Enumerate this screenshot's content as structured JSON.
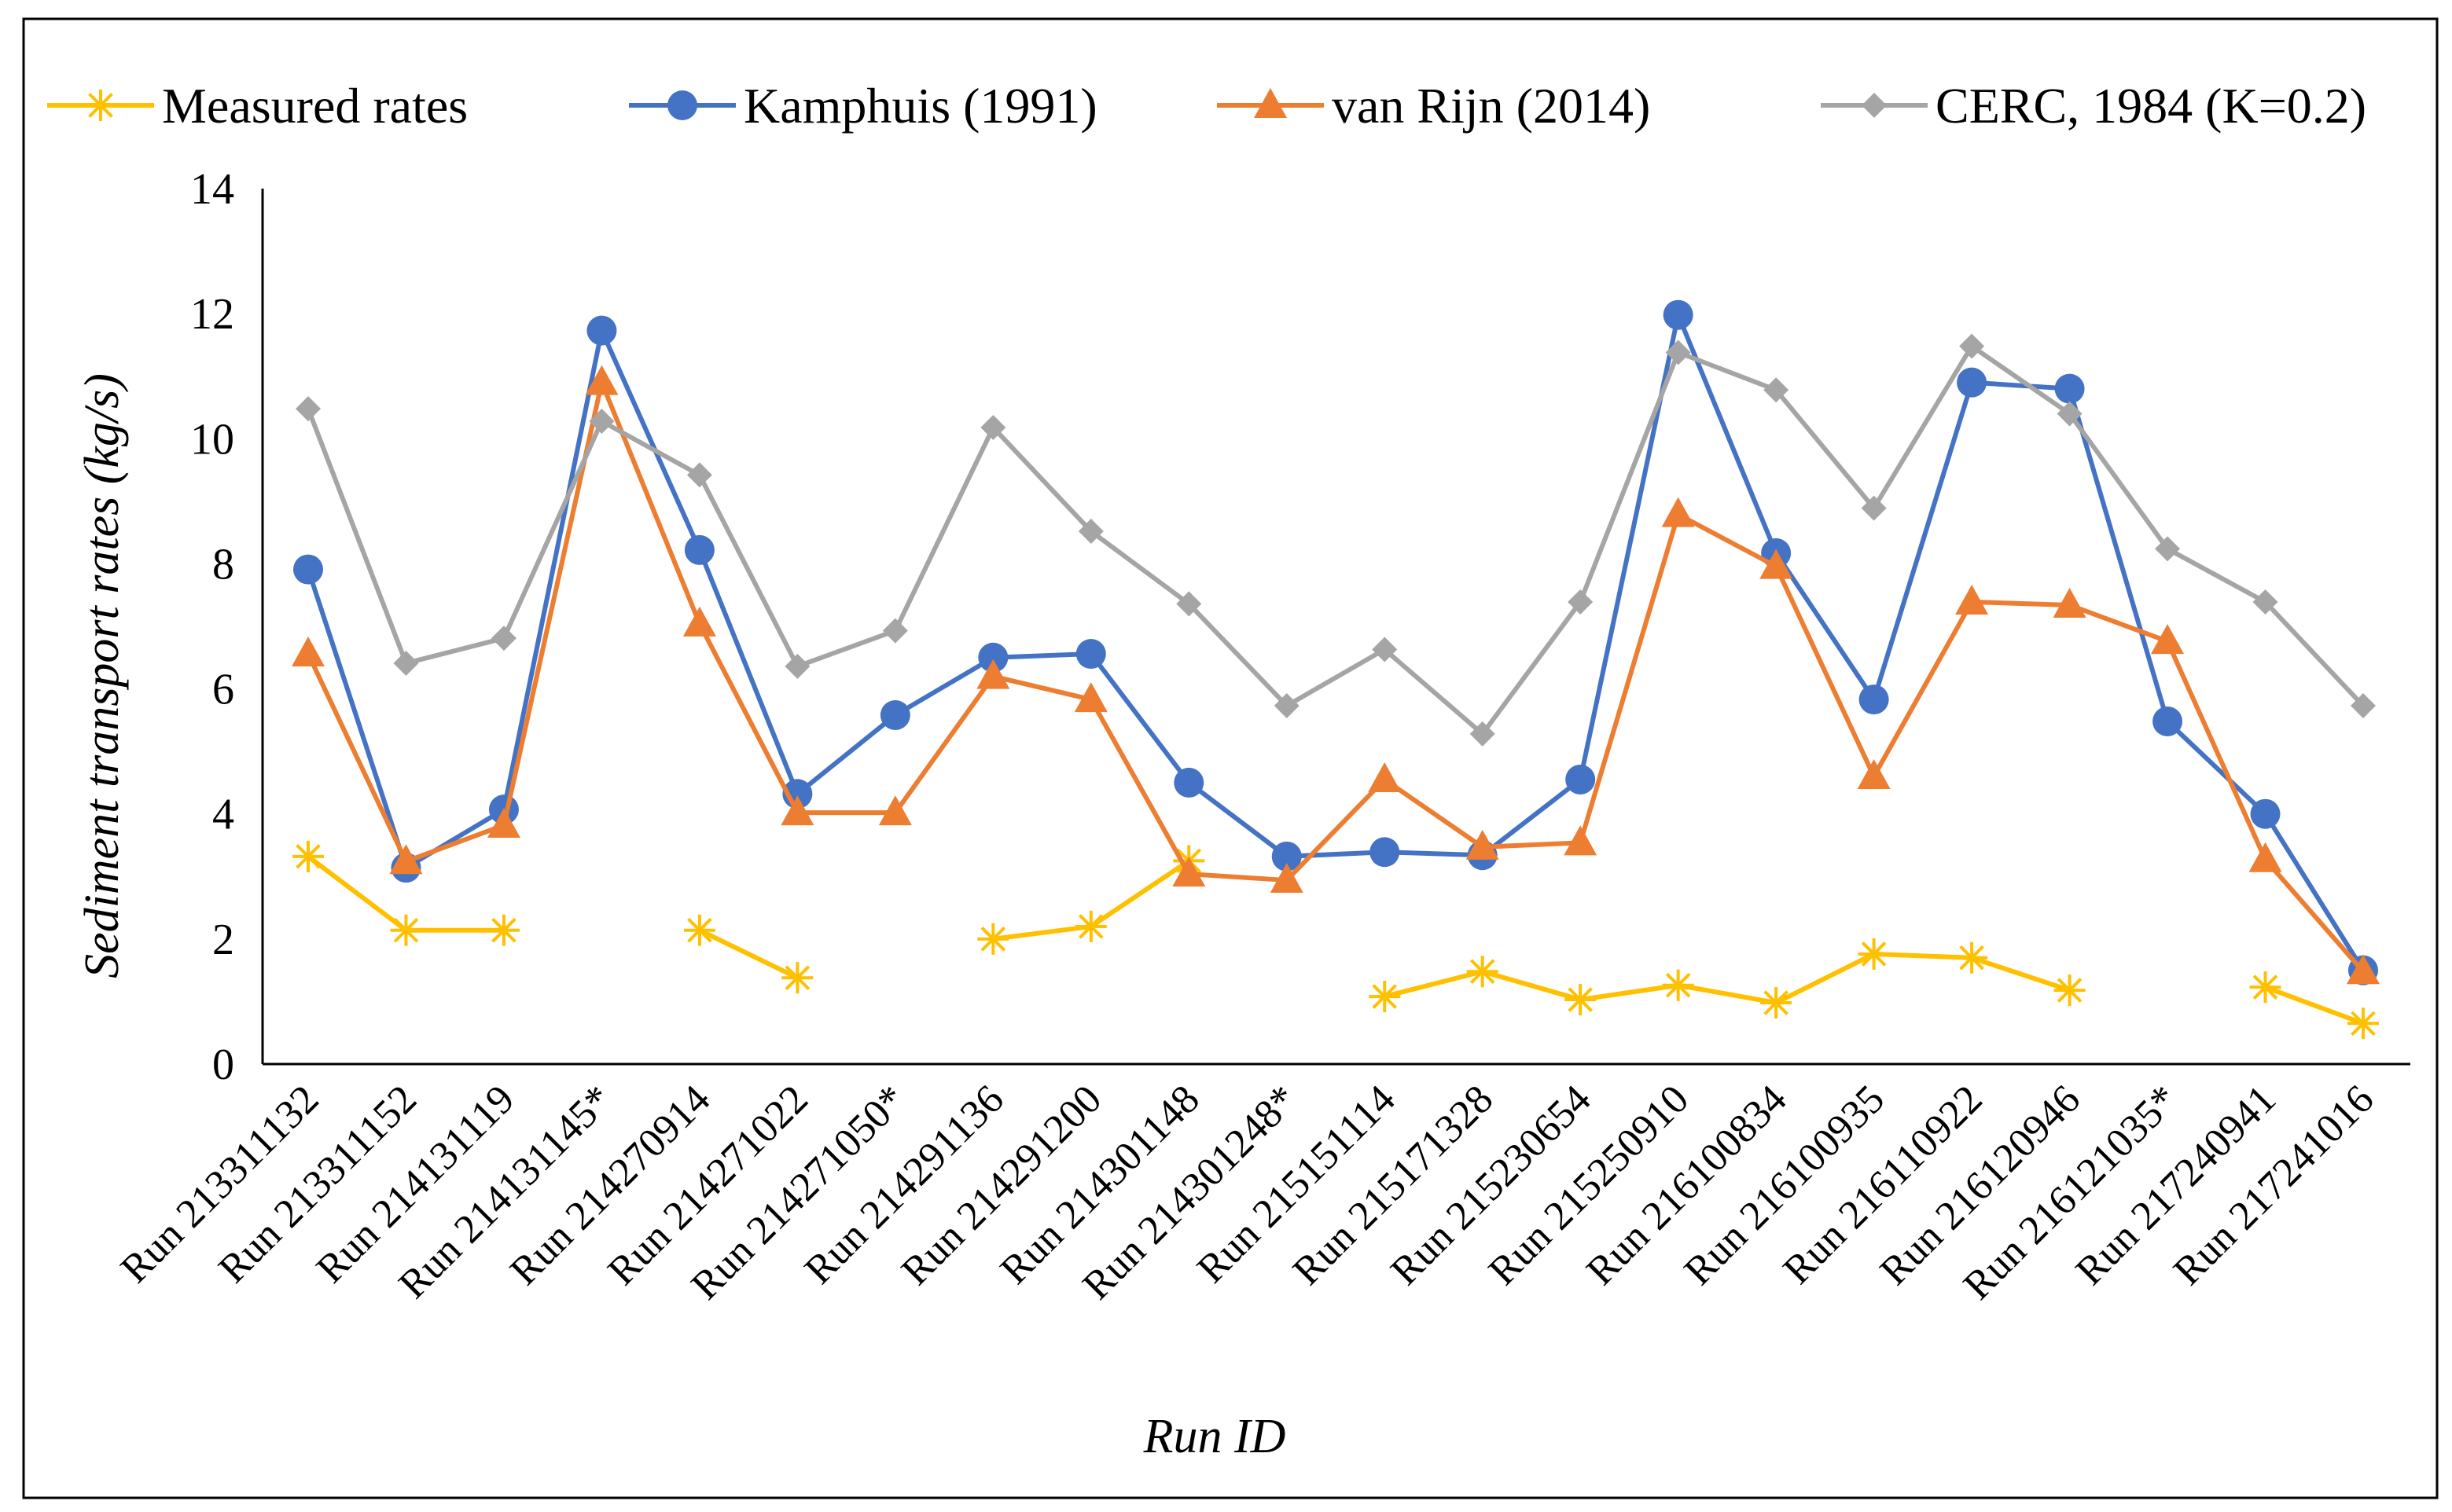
{
  "chart_data": {
    "type": "line",
    "title": "",
    "xlabel": "Run ID",
    "ylabel": "Sediment transport rates (kg/s)",
    "ylim": [
      0,
      14
    ],
    "yticks": [
      0,
      2,
      4,
      6,
      8,
      10,
      12,
      14
    ],
    "grid": false,
    "legend_position": "top",
    "categories": [
      "Run 213311132",
      "Run 213311152",
      "Run 214131119",
      "Run 214131145*",
      "Run 214270914",
      "Run 214271022",
      "Run 214271050*",
      "Run 214291136",
      "Run 214291200",
      "Run 214301148",
      "Run 214301248*",
      "Run 215151114",
      "Run 215171328",
      "Run 215230654",
      "Run 215250910",
      "Run 216100834",
      "Run 216100935",
      "Run 216110922",
      "Run 216120946",
      "Run 216121035*",
      "Run 217240941",
      "Run 217241016"
    ],
    "series": [
      {
        "name": "Measured rates",
        "color": "#FFC000",
        "marker": "asterisk",
        "values": [
          3.32,
          2.14,
          2.14,
          null,
          2.14,
          1.38,
          null,
          2.0,
          2.2,
          3.25,
          null,
          1.08,
          1.48,
          1.03,
          1.26,
          0.98,
          1.76,
          1.7,
          1.18,
          null,
          1.23,
          0.65
        ]
      },
      {
        "name": "Kamphuis (1991)",
        "color": "#4472C4",
        "marker": "circle",
        "values": [
          7.91,
          3.14,
          4.07,
          11.73,
          8.22,
          4.32,
          5.58,
          6.5,
          6.56,
          4.5,
          3.32,
          3.39,
          3.34,
          4.55,
          11.98,
          8.17,
          5.83,
          10.9,
          10.8,
          5.48,
          4.0,
          1.5
        ]
      },
      {
        "name": "van Rijn (2014)",
        "color": "#ED7D31",
        "marker": "triangle",
        "values": [
          6.56,
          3.24,
          3.82,
          10.9,
          7.04,
          4.02,
          4.02,
          6.2,
          5.83,
          3.04,
          2.94,
          4.55,
          3.47,
          3.54,
          8.79,
          7.96,
          4.6,
          7.39,
          7.34,
          6.76,
          3.27,
          1.48
        ]
      },
      {
        "name": "CERC, 1984 (K=0.2)",
        "color": "#A5A5A5",
        "marker": "diamond",
        "values": [
          10.48,
          6.41,
          6.81,
          10.28,
          9.42,
          6.36,
          6.93,
          10.18,
          8.52,
          7.36,
          5.73,
          6.63,
          5.28,
          7.39,
          11.38,
          10.78,
          8.89,
          11.48,
          10.4,
          8.24,
          7.39,
          5.73
        ]
      }
    ]
  }
}
